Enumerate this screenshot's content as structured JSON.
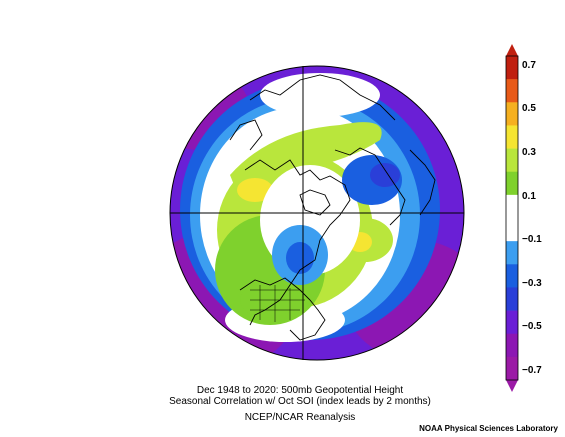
{
  "map": {
    "projection": "north-polar-stereographic",
    "variable": "500mb Geopotential Height",
    "colors": {
      "deep_purple": "#8c17b3",
      "purple": "#6a1fd6",
      "blue": "#1a5fe0",
      "light_blue": "#3c9ef0",
      "white": "#ffffff",
      "light_green": "#b9e63c",
      "green": "#7fd12d",
      "yellow": "#f5e532",
      "orange": "#f0a020",
      "red": "#e04010"
    }
  },
  "caption": {
    "line1": "Dec 1948 to 2020: 500mb Geopotential Height",
    "line2": "Seasonal Correlation w/ Oct SOI (index leads by 2 months)",
    "line3": "NCEP/NCAR Reanalysis"
  },
  "credit": "NOAA Physical Sciences Laboratory",
  "colorbar": {
    "labels": [
      "0.7",
      "0.5",
      "0.3",
      "0.1",
      "−0.1",
      "−0.3",
      "−0.5",
      "−0.7"
    ],
    "colors": [
      "#c02010",
      "#e85a18",
      "#f5b020",
      "#f5e532",
      "#b9e63c",
      "#7fd12d",
      "#ffffff",
      "#ffffff",
      "#3c9ef0",
      "#1a5fe0",
      "#2a3fd8",
      "#6a1fd6",
      "#8c17b3",
      "#9b1aa6"
    ]
  }
}
